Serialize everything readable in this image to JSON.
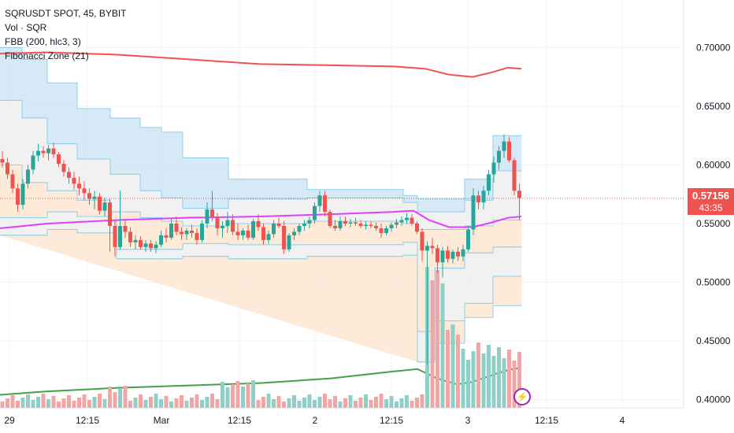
{
  "legend": {
    "symbol": "SQRUSDT SPOT, 45, BYBIT",
    "volume": "Vol · SQR",
    "fbb": "FBB (200, hlc3, 3)",
    "fib": "Fibonacci Zone (21)"
  },
  "last_price": {
    "price": "0.57156",
    "timer": "43:35"
  },
  "bolt_icon": "lightning-icon",
  "colors": {
    "up": "#26a69a",
    "down": "#ef5350",
    "vol_up": "#8fcfc7",
    "vol_down": "#f4a5a3",
    "fbb_upper": "#ef5350",
    "fbb_mid": "#e040fb",
    "fbb_lower": "#43a047",
    "zone_blue": "#c7e3f3",
    "zone_orange": "#fde3cc",
    "zone_gray": "#ececec"
  },
  "chart_data": {
    "type": "candlestick",
    "title": "SQRUSDT SPOT, 45, BYBIT",
    "y_ticks": [
      "0.70000",
      "0.65000",
      "0.60000",
      "0.55000",
      "0.50000",
      "0.45000",
      "0.40000"
    ],
    "ylim": [
      0.39,
      0.725
    ],
    "x_ticks": [
      "29",
      "12:15",
      "Mar",
      "12:15",
      "2",
      "12:15",
      "3",
      "12:15",
      "4"
    ],
    "grid": true,
    "candles": [
      [
        0.605,
        0.612,
        0.598,
        0.602
      ],
      [
        0.602,
        0.606,
        0.588,
        0.592
      ],
      [
        0.592,
        0.596,
        0.576,
        0.58
      ],
      [
        0.58,
        0.584,
        0.56,
        0.566
      ],
      [
        0.566,
        0.588,
        0.562,
        0.584
      ],
      [
        0.584,
        0.6,
        0.58,
        0.596
      ],
      [
        0.596,
        0.612,
        0.592,
        0.608
      ],
      [
        0.608,
        0.618,
        0.603,
        0.612
      ],
      [
        0.612,
        0.616,
        0.606,
        0.61
      ],
      [
        0.61,
        0.617,
        0.604,
        0.614
      ],
      [
        0.614,
        0.619,
        0.606,
        0.609
      ],
      [
        0.609,
        0.611,
        0.598,
        0.601
      ],
      [
        0.601,
        0.604,
        0.59,
        0.594
      ],
      [
        0.594,
        0.598,
        0.584,
        0.589
      ],
      [
        0.589,
        0.594,
        0.579,
        0.584
      ],
      [
        0.584,
        0.59,
        0.574,
        0.58
      ],
      [
        0.58,
        0.586,
        0.57,
        0.576
      ],
      [
        0.576,
        0.58,
        0.566,
        0.571
      ],
      [
        0.571,
        0.578,
        0.562,
        0.573
      ],
      [
        0.573,
        0.576,
        0.558,
        0.561
      ],
      [
        0.561,
        0.572,
        0.556,
        0.568
      ],
      [
        0.568,
        0.571,
        0.526,
        0.548
      ],
      [
        0.548,
        0.553,
        0.522,
        0.53
      ],
      [
        0.53,
        0.578,
        0.528,
        0.548
      ],
      [
        0.548,
        0.553,
        0.538,
        0.543
      ],
      [
        0.543,
        0.547,
        0.53,
        0.534
      ],
      [
        0.534,
        0.54,
        0.528,
        0.536
      ],
      [
        0.536,
        0.539,
        0.528,
        0.53
      ],
      [
        0.53,
        0.536,
        0.526,
        0.533
      ],
      [
        0.533,
        0.536,
        0.526,
        0.529
      ],
      [
        0.529,
        0.535,
        0.525,
        0.532
      ],
      [
        0.532,
        0.544,
        0.53,
        0.54
      ],
      [
        0.54,
        0.546,
        0.534,
        0.538
      ],
      [
        0.538,
        0.554,
        0.536,
        0.55
      ],
      [
        0.55,
        0.556,
        0.54,
        0.543
      ],
      [
        0.543,
        0.547,
        0.536,
        0.541
      ],
      [
        0.541,
        0.546,
        0.536,
        0.544
      ],
      [
        0.544,
        0.549,
        0.538,
        0.542
      ],
      [
        0.542,
        0.546,
        0.532,
        0.536
      ],
      [
        0.536,
        0.553,
        0.534,
        0.55
      ],
      [
        0.55,
        0.568,
        0.546,
        0.562
      ],
      [
        0.562,
        0.578,
        0.552,
        0.556
      ],
      [
        0.556,
        0.559,
        0.54,
        0.546
      ],
      [
        0.546,
        0.552,
        0.538,
        0.548
      ],
      [
        0.548,
        0.56,
        0.542,
        0.553
      ],
      [
        0.553,
        0.558,
        0.54,
        0.543
      ],
      [
        0.543,
        0.55,
        0.536,
        0.54
      ],
      [
        0.54,
        0.546,
        0.536,
        0.544
      ],
      [
        0.544,
        0.549,
        0.536,
        0.538
      ],
      [
        0.538,
        0.554,
        0.536,
        0.552
      ],
      [
        0.552,
        0.558,
        0.544,
        0.547
      ],
      [
        0.547,
        0.55,
        0.532,
        0.536
      ],
      [
        0.536,
        0.544,
        0.533,
        0.541
      ],
      [
        0.541,
        0.553,
        0.538,
        0.55
      ],
      [
        0.55,
        0.555,
        0.546,
        0.548
      ],
      [
        0.548,
        0.552,
        0.524,
        0.528
      ],
      [
        0.528,
        0.542,
        0.526,
        0.54
      ],
      [
        0.54,
        0.546,
        0.536,
        0.543
      ],
      [
        0.543,
        0.55,
        0.54,
        0.548
      ],
      [
        0.548,
        0.553,
        0.544,
        0.55
      ],
      [
        0.55,
        0.556,
        0.546,
        0.553
      ],
      [
        0.553,
        0.568,
        0.55,
        0.565
      ],
      [
        0.565,
        0.578,
        0.56,
        0.574
      ],
      [
        0.574,
        0.578,
        0.556,
        0.56
      ],
      [
        0.56,
        0.562,
        0.546,
        0.548
      ],
      [
        0.548,
        0.553,
        0.544,
        0.546
      ],
      [
        0.546,
        0.556,
        0.544,
        0.552
      ],
      [
        0.552,
        0.556,
        0.548,
        0.55
      ],
      [
        0.55,
        0.554,
        0.547,
        0.551
      ],
      [
        0.551,
        0.555,
        0.548,
        0.55
      ],
      [
        0.55,
        0.553,
        0.546,
        0.548
      ],
      [
        0.548,
        0.552,
        0.545,
        0.549
      ],
      [
        0.549,
        0.552,
        0.546,
        0.548
      ],
      [
        0.548,
        0.551,
        0.544,
        0.546
      ],
      [
        0.546,
        0.55,
        0.538,
        0.542
      ],
      [
        0.542,
        0.548,
        0.54,
        0.546
      ],
      [
        0.546,
        0.551,
        0.543,
        0.549
      ],
      [
        0.549,
        0.554,
        0.546,
        0.551
      ],
      [
        0.551,
        0.556,
        0.548,
        0.553
      ],
      [
        0.553,
        0.559,
        0.55,
        0.555
      ],
      [
        0.555,
        0.558,
        0.548,
        0.55
      ],
      [
        0.55,
        0.552,
        0.541,
        0.543
      ],
      [
        0.543,
        0.546,
        0.518,
        0.527
      ],
      [
        0.527,
        0.535,
        0.43,
        0.531
      ],
      [
        0.531,
        0.538,
        0.524,
        0.529
      ],
      [
        0.529,
        0.532,
        0.508,
        0.517
      ],
      [
        0.517,
        0.53,
        0.504,
        0.527
      ],
      [
        0.527,
        0.531,
        0.517,
        0.52
      ],
      [
        0.52,
        0.528,
        0.516,
        0.526
      ],
      [
        0.526,
        0.53,
        0.518,
        0.522
      ],
      [
        0.522,
        0.532,
        0.518,
        0.528
      ],
      [
        0.528,
        0.548,
        0.526,
        0.545
      ],
      [
        0.545,
        0.58,
        0.54,
        0.574
      ],
      [
        0.574,
        0.578,
        0.562,
        0.568
      ],
      [
        0.568,
        0.582,
        0.562,
        0.578
      ],
      [
        0.578,
        0.596,
        0.574,
        0.592
      ],
      [
        0.592,
        0.607,
        0.585,
        0.602
      ],
      [
        0.602,
        0.616,
        0.596,
        0.612
      ],
      [
        0.612,
        0.626,
        0.606,
        0.62
      ],
      [
        0.62,
        0.624,
        0.602,
        0.604
      ],
      [
        0.604,
        0.606,
        0.574,
        0.578
      ],
      [
        0.578,
        0.584,
        0.553,
        0.572
      ]
    ]
  }
}
